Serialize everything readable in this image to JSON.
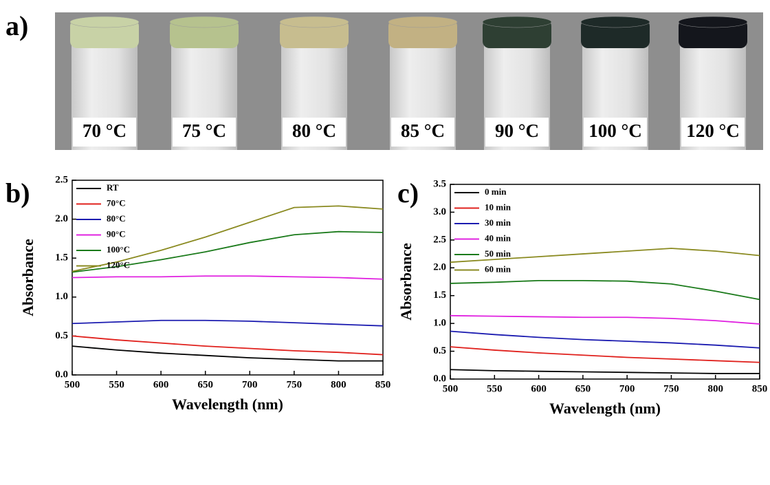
{
  "photo": {
    "panel_label": "a)",
    "labels": [
      "70 °C",
      "75 °C",
      "80 °C",
      "85 °C",
      "90 °C",
      "100 °C",
      "120 °C"
    ]
  },
  "chart_data": [
    {
      "type": "line",
      "panel_label": "b)",
      "x_label": "Wavelength (nm)",
      "y_label": "Absorbance",
      "x": [
        500,
        550,
        600,
        650,
        700,
        750,
        800,
        850
      ],
      "xlim": [
        500,
        850
      ],
      "xticks": [
        500,
        550,
        600,
        650,
        700,
        750,
        800,
        850
      ],
      "ylim": [
        0,
        2.5
      ],
      "yticks": [
        {
          "value": 0,
          "label": "0.0"
        },
        0.5,
        {
          "value": 1,
          "label": "1.0"
        },
        1.5,
        {
          "value": 2,
          "label": "2.0"
        },
        2.5
      ],
      "legend": "upper-left",
      "series": [
        {
          "name": "RT",
          "color": "#000000",
          "values": [
            0.37,
            0.32,
            0.28,
            0.25,
            0.22,
            0.2,
            0.18,
            0.18
          ]
        },
        {
          "name": "70°C",
          "color": "#e0201c",
          "values": [
            0.5,
            0.45,
            0.41,
            0.37,
            0.34,
            0.31,
            0.29,
            0.26
          ]
        },
        {
          "name": "80°C",
          "color": "#1b1bb0",
          "values": [
            0.66,
            0.68,
            0.7,
            0.7,
            0.69,
            0.67,
            0.65,
            0.63
          ]
        },
        {
          "name": "90°C",
          "color": "#e020e0",
          "values": [
            1.25,
            1.26,
            1.26,
            1.27,
            1.27,
            1.26,
            1.25,
            1.23
          ]
        },
        {
          "name": "100°C",
          "color": "#1a7a1a",
          "values": [
            1.32,
            1.39,
            1.48,
            1.58,
            1.7,
            1.8,
            1.84,
            1.83
          ]
        },
        {
          "name": "120°C",
          "color": "#8a8a20",
          "values": [
            1.33,
            1.45,
            1.6,
            1.77,
            1.96,
            2.15,
            2.17,
            2.13
          ]
        }
      ]
    },
    {
      "type": "line",
      "panel_label": "c)",
      "x_label": "Wavelength (nm)",
      "y_label": "Absorbance",
      "x": [
        500,
        550,
        600,
        650,
        700,
        750,
        800,
        850
      ],
      "xlim": [
        500,
        850
      ],
      "xticks": [
        500,
        550,
        600,
        650,
        700,
        750,
        800,
        850
      ],
      "ylim": [
        0,
        3.5
      ],
      "yticks": [
        {
          "value": 0,
          "label": "0.0"
        },
        0.5,
        {
          "value": 1,
          "label": "1.0"
        },
        1.5,
        {
          "value": 2,
          "label": "2.0"
        },
        2.5,
        {
          "value": 3,
          "label": "3.0"
        },
        3.5
      ],
      "legend": "upper-left",
      "series": [
        {
          "name": "0 min",
          "color": "#000000",
          "values": [
            0.17,
            0.15,
            0.14,
            0.13,
            0.12,
            0.11,
            0.1,
            0.1
          ]
        },
        {
          "name": "10 min",
          "color": "#e0201c",
          "values": [
            0.58,
            0.52,
            0.47,
            0.43,
            0.39,
            0.36,
            0.33,
            0.3
          ]
        },
        {
          "name": "30 min",
          "color": "#1b1bb0",
          "values": [
            0.86,
            0.8,
            0.75,
            0.71,
            0.68,
            0.65,
            0.61,
            0.56
          ]
        },
        {
          "name": "40 min",
          "color": "#e020e0",
          "values": [
            1.14,
            1.13,
            1.12,
            1.11,
            1.11,
            1.09,
            1.05,
            0.99
          ]
        },
        {
          "name": "50 min",
          "color": "#1a7a1a",
          "values": [
            1.72,
            1.74,
            1.77,
            1.77,
            1.76,
            1.71,
            1.58,
            1.43
          ]
        },
        {
          "name": "60 min",
          "color": "#8a8a20",
          "values": [
            2.1,
            2.15,
            2.2,
            2.25,
            2.3,
            2.35,
            2.3,
            2.22
          ]
        }
      ]
    }
  ]
}
